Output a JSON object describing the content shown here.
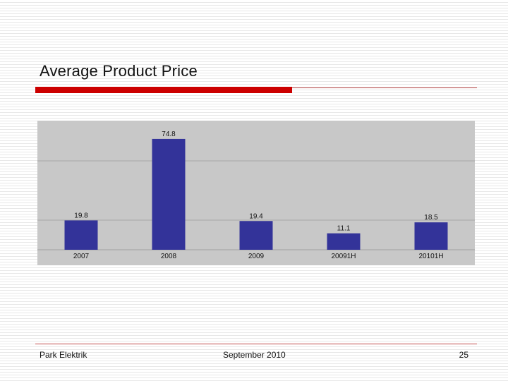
{
  "slide": {
    "title": "Average Product Price",
    "footer_left": "Park Elektrik",
    "footer_center": "September 2010",
    "footer_right": "25"
  },
  "colors": {
    "bar": "#333399",
    "accent": "#cc0000",
    "chart_background": "#c8c8c8"
  },
  "chart_data": {
    "type": "bar",
    "categories": [
      "2007",
      "2008",
      "2009",
      "20091H",
      "20101H"
    ],
    "values": [
      19.8,
      74.8,
      19.4,
      11.1,
      18.5
    ],
    "title": "",
    "xlabel": "",
    "ylabel": "",
    "ylim": [
      0,
      80
    ],
    "grid": true
  }
}
